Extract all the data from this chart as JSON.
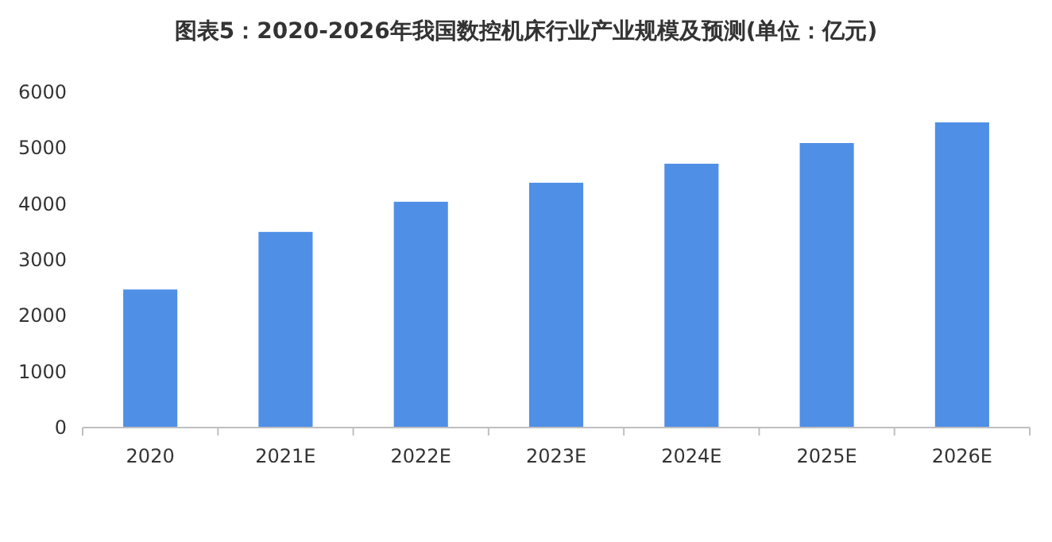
{
  "chart_data": {
    "type": "bar",
    "title": "图表5：2020-2026年我国数控机床行业产业规模及预测(单位：亿元)",
    "categories": [
      "2020",
      "2021E",
      "2022E",
      "2023E",
      "2024E",
      "2025E",
      "2026E"
    ],
    "values": [
      2470,
      3500,
      4040,
      4380,
      4720,
      5090,
      5460
    ],
    "color": "#4f8fe6",
    "ylim": [
      0,
      6000
    ],
    "yticks": [
      0,
      1000,
      2000,
      3000,
      4000,
      5000,
      6000
    ]
  }
}
